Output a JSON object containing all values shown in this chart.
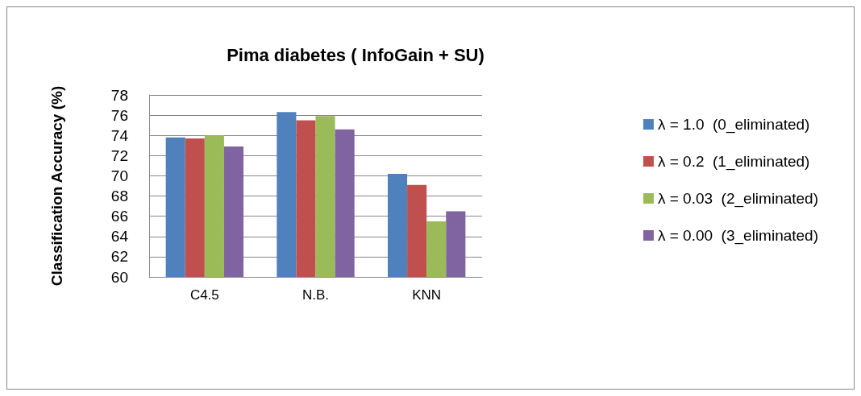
{
  "chart_data": {
    "type": "bar",
    "title": "Pima diabetes ( InfoGain + SU)",
    "ylabel": "Classification Accuracy (%)",
    "categories": [
      "C4.5",
      "N.B.",
      "KNN"
    ],
    "series": [
      {
        "name": "λ = 1.0  (0_eliminated)",
        "color": "#4f81bd",
        "values": [
          73.8,
          76.3,
          70.2
        ]
      },
      {
        "name": "λ = 0.2  (1_eliminated)",
        "color": "#c0504d",
        "values": [
          73.7,
          75.5,
          69.1
        ]
      },
      {
        "name": "λ = 0.03  (2_eliminated)",
        "color": "#9bbb59",
        "values": [
          74.0,
          75.9,
          65.5
        ]
      },
      {
        "name": "λ = 0.00  (3_eliminated)",
        "color": "#8064a2",
        "values": [
          72.9,
          74.6,
          66.5
        ]
      }
    ],
    "ylim": [
      60,
      78
    ],
    "yticks": [
      60,
      62,
      64,
      66,
      68,
      70,
      72,
      74,
      76,
      78
    ],
    "grid": "y",
    "legend": "right"
  }
}
